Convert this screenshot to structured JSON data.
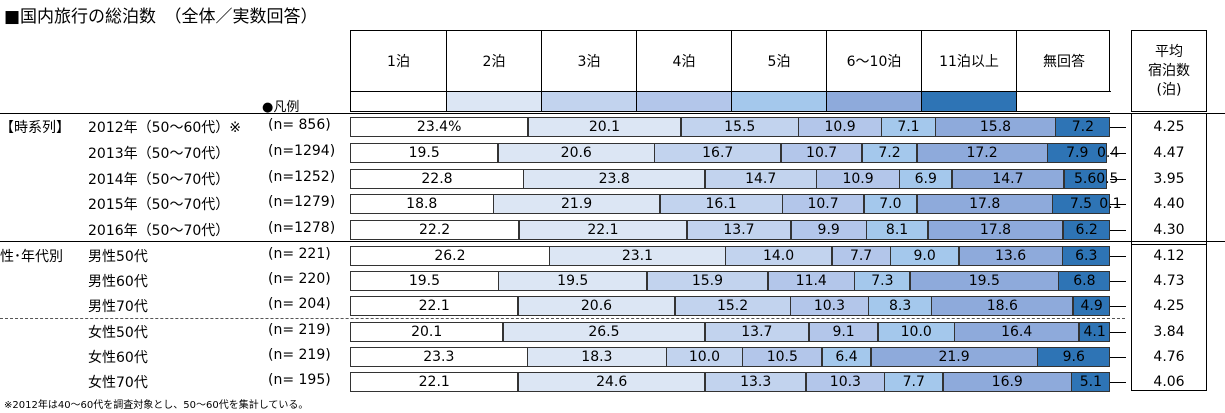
{
  "title": "■国内旅行の総泊数　（全体／実数回答）",
  "legend_note": "●凡例",
  "avg_header": [
    "平均",
    "宿泊数",
    "(泊)"
  ],
  "footnote": "※2012年は40～60代を調査対象とし、50～60代を集計している。",
  "colors": [
    "#ffffff",
    "#dce6f4",
    "#c2d3ee",
    "#b3c6ea",
    "#a4c8ec",
    "#8eaadb",
    "#2e74b5",
    "#ffffff"
  ],
  "chart_data": {
    "type": "bar",
    "stacked": "100%",
    "categories": [
      "1泊",
      "2泊",
      "3泊",
      "4泊",
      "5泊",
      "6～10泊",
      "11泊以上",
      "無回答"
    ],
    "groups": [
      {
        "label": "【時系列】",
        "start": 0
      },
      {
        "label": "性･年代別",
        "start": 5
      }
    ],
    "rows": [
      {
        "label": "2012年（50～60代）※",
        "n": "(n=  856)",
        "values": [
          23.4,
          20.1,
          15.5,
          10.9,
          7.1,
          15.8,
          7.2,
          0
        ],
        "labels": [
          "23.4%",
          "20.1",
          "15.5",
          "10.9",
          "7.1",
          "15.8",
          "7.2",
          ""
        ],
        "avg": "4.25"
      },
      {
        "label": "2013年（50～70代）",
        "n": "(n=1294)",
        "values": [
          19.5,
          20.6,
          16.7,
          10.7,
          7.2,
          17.2,
          7.9,
          0.4
        ],
        "labels": [
          "19.5",
          "20.6",
          "16.7",
          "10.7",
          "7.2",
          "17.2",
          "7.9",
          "0.4"
        ],
        "avg": "4.47"
      },
      {
        "label": "2014年（50～70代）",
        "n": "(n=1252)",
        "values": [
          22.8,
          23.8,
          14.7,
          10.9,
          6.9,
          14.7,
          5.6,
          0.5
        ],
        "labels": [
          "22.8",
          "23.8",
          "14.7",
          "10.9",
          "6.9",
          "14.7",
          "5.6",
          "0.5"
        ],
        "avg": "3.95"
      },
      {
        "label": "2015年（50～70代）",
        "n": "(n=1279)",
        "values": [
          18.8,
          21.9,
          16.1,
          10.7,
          7.0,
          17.8,
          7.5,
          0.1
        ],
        "labels": [
          "18.8",
          "21.9",
          "16.1",
          "10.7",
          "7.0",
          "17.8",
          "7.5",
          "0.1"
        ],
        "avg": "4.40"
      },
      {
        "label": "2016年（50～70代）",
        "n": "(n=1278)",
        "values": [
          22.2,
          22.1,
          13.7,
          9.9,
          8.1,
          17.8,
          6.2,
          0
        ],
        "labels": [
          "22.2",
          "22.1",
          "13.7",
          "9.9",
          "8.1",
          "17.8",
          "6.2",
          ""
        ],
        "avg": "4.30"
      },
      {
        "label": "男性50代",
        "n": "(n=  221)",
        "values": [
          26.2,
          23.1,
          14.0,
          7.7,
          9.0,
          13.6,
          6.3,
          0
        ],
        "labels": [
          "26.2",
          "23.1",
          "14.0",
          "7.7",
          "9.0",
          "13.6",
          "6.3",
          ""
        ],
        "avg": "4.12"
      },
      {
        "label": "男性60代",
        "n": "(n=  220)",
        "values": [
          19.5,
          19.5,
          15.9,
          11.4,
          7.3,
          19.5,
          6.8,
          0
        ],
        "labels": [
          "19.5",
          "19.5",
          "15.9",
          "11.4",
          "7.3",
          "19.5",
          "6.8",
          ""
        ],
        "avg": "4.73"
      },
      {
        "label": "男性70代",
        "n": "(n=  204)",
        "values": [
          22.1,
          20.6,
          15.2,
          10.3,
          8.3,
          18.6,
          4.9,
          0
        ],
        "labels": [
          "22.1",
          "20.6",
          "15.2",
          "10.3",
          "8.3",
          "18.6",
          "4.9",
          ""
        ],
        "avg": "4.25"
      },
      {
        "label": "女性50代",
        "n": "(n=  219)",
        "values": [
          20.1,
          26.5,
          13.7,
          9.1,
          10.0,
          16.4,
          4.1,
          0
        ],
        "labels": [
          "20.1",
          "26.5",
          "13.7",
          "9.1",
          "10.0",
          "16.4",
          "4.1",
          ""
        ],
        "avg": "3.84"
      },
      {
        "label": "女性60代",
        "n": "(n=  219)",
        "values": [
          23.3,
          18.3,
          10.0,
          10.5,
          6.4,
          21.9,
          9.6,
          0
        ],
        "labels": [
          "23.3",
          "18.3",
          "10.0",
          "10.5",
          "6.4",
          "21.9",
          "9.6",
          ""
        ],
        "avg": "4.76"
      },
      {
        "label": "女性70代",
        "n": "(n=  195)",
        "values": [
          22.1,
          24.6,
          13.3,
          10.3,
          7.7,
          16.9,
          5.1,
          0
        ],
        "labels": [
          "22.1",
          "24.6",
          "13.3",
          "10.3",
          "7.7",
          "16.9",
          "5.1",
          ""
        ],
        "avg": "4.06"
      }
    ]
  }
}
